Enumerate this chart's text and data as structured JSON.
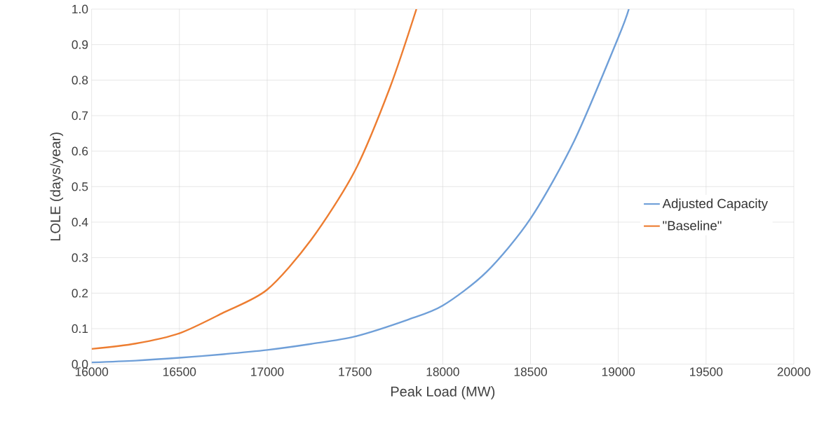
{
  "chart_data": {
    "type": "line",
    "xlabel": "Peak Load (MW)",
    "ylabel": "LOLE (days/year)",
    "xlim": [
      16000,
      20000
    ],
    "xticks": [
      16000,
      16500,
      17000,
      17500,
      18000,
      18500,
      19000,
      19500,
      20000
    ],
    "ylim": [
      0,
      1
    ],
    "yticks": [
      {
        "value": 0,
        "label": "0.0"
      },
      0.1,
      0.2,
      0.3,
      0.4,
      0.5,
      0.6,
      0.7,
      0.8,
      0.9,
      {
        "value": 1,
        "label": "1.0"
      }
    ],
    "grid": true,
    "legend": "right",
    "marker": "none",
    "line_style": "solid",
    "series": [
      {
        "name": "Adjusted Capacity",
        "color": "#6f9fd8",
        "x": [
          16000,
          16250,
          16500,
          16750,
          17000,
          17250,
          17500,
          17800,
          18000,
          18250,
          18500,
          18750,
          19000,
          19060
        ],
        "values": [
          0.005,
          0.01,
          0.018,
          0.028,
          0.04,
          0.057,
          0.078,
          0.125,
          0.165,
          0.26,
          0.41,
          0.63,
          0.92,
          1.0
        ]
      },
      {
        "name": "\"Baseline\"",
        "color": "#ed7d31",
        "x": [
          16000,
          16250,
          16500,
          16750,
          17000,
          17250,
          17500,
          17700,
          17850
        ],
        "values": [
          0.043,
          0.058,
          0.087,
          0.145,
          0.21,
          0.35,
          0.545,
          0.78,
          1.0
        ]
      }
    ]
  }
}
